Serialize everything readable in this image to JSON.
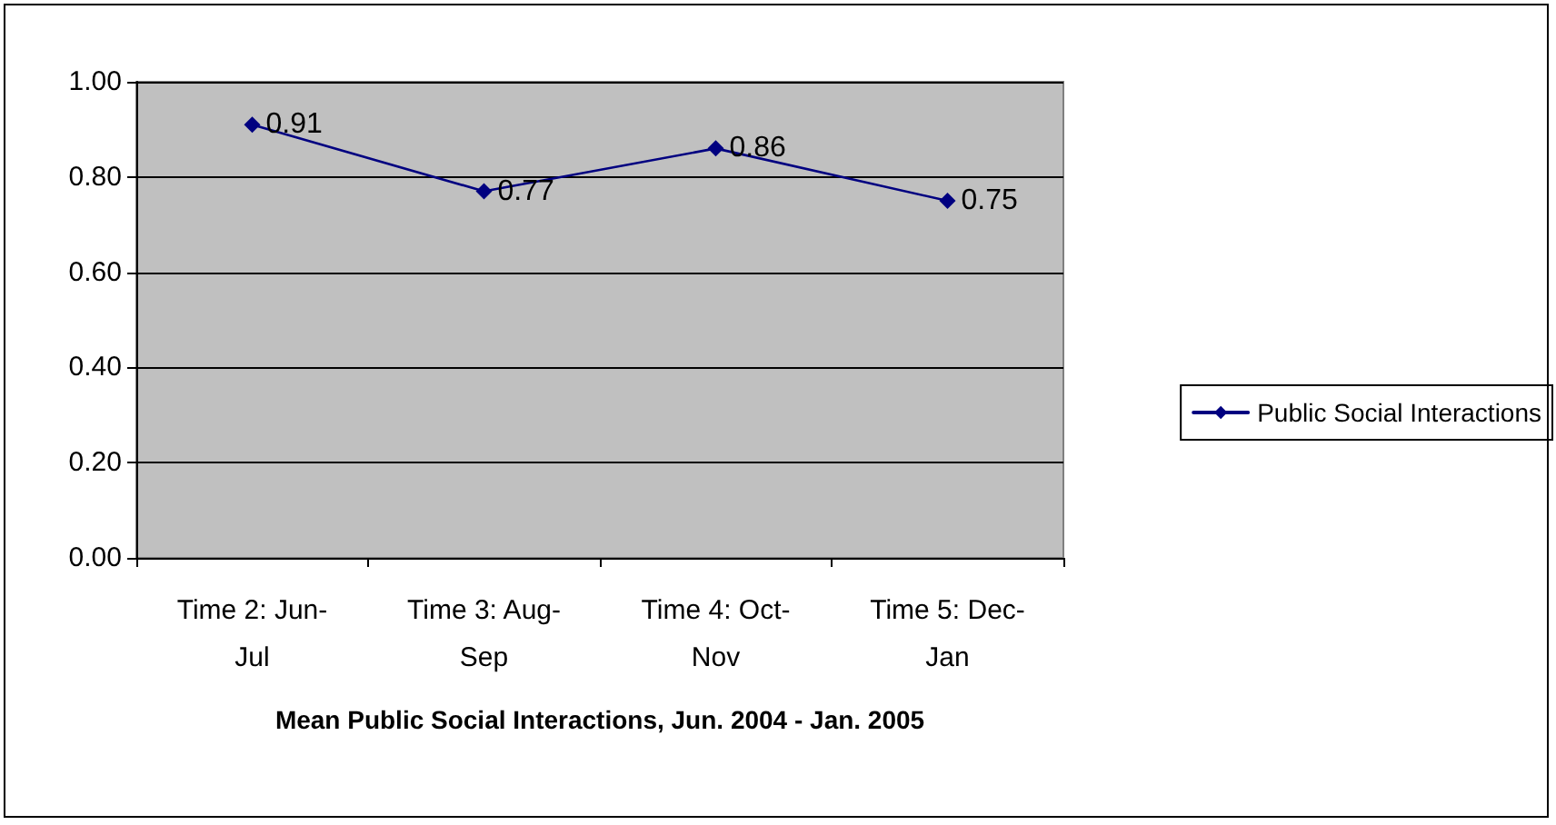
{
  "chart_data": {
    "type": "line",
    "xlabel": "Mean Public Social Interactions, Jun. 2004 - Jan. 2005",
    "categories": [
      "Time 2: Jun-Jul",
      "Time 3: Aug-Sep",
      "Time 4: Oct-Nov",
      "Time 5: Dec-Jan"
    ],
    "series": [
      {
        "name": "Public Social Interactions",
        "color": "#000080",
        "values": [
          0.91,
          0.77,
          0.86,
          0.75
        ]
      }
    ],
    "ylim": [
      0,
      1
    ],
    "yticks": [
      {
        "value": 0,
        "label": "0.00"
      },
      {
        "value": 0.2,
        "label": "0.20"
      },
      {
        "value": 0.4,
        "label": "0.40"
      },
      {
        "value": 0.6,
        "label": "0.60"
      },
      {
        "value": 0.8,
        "label": "0.80"
      },
      {
        "value": 1,
        "label": "1.00"
      }
    ],
    "grid": "y",
    "legend": "right",
    "marker": "diamond",
    "line_style": "solid",
    "data_labels": true
  }
}
